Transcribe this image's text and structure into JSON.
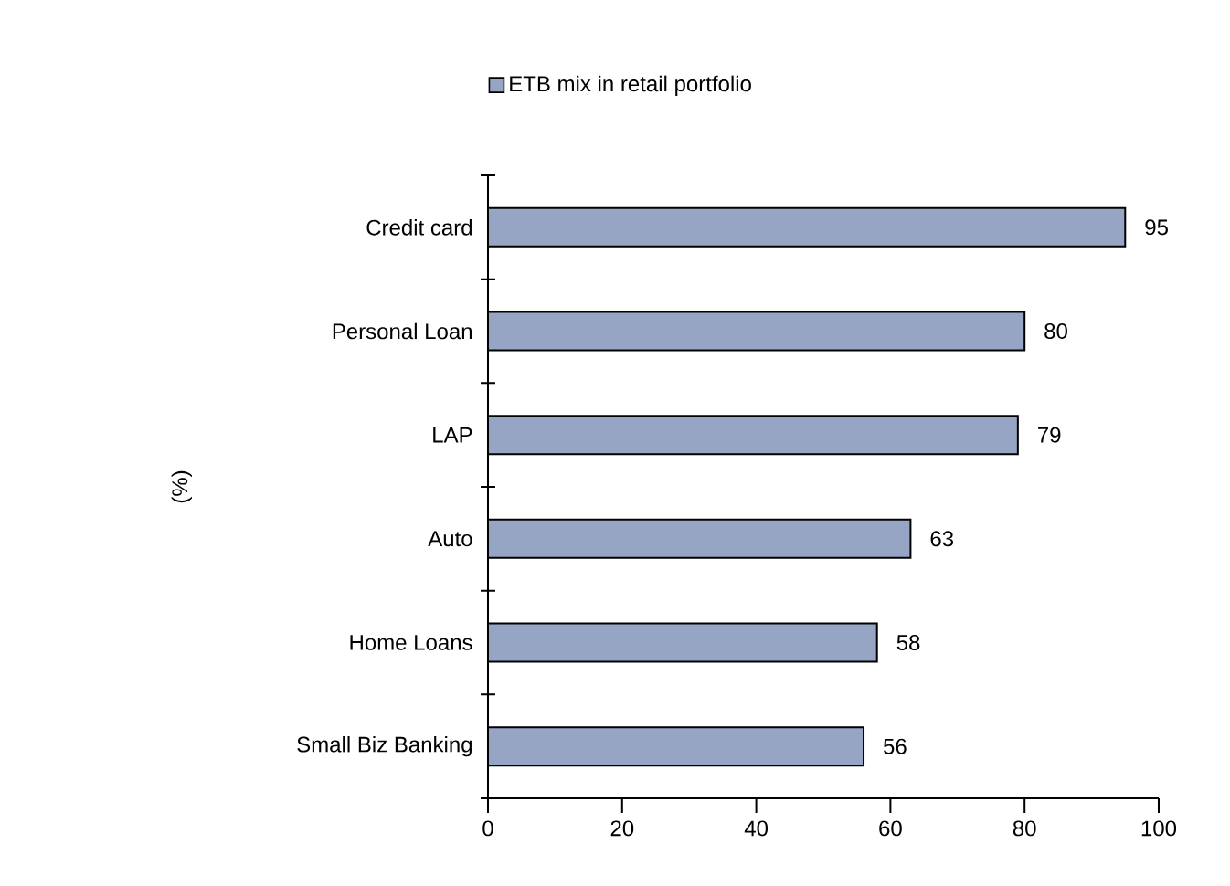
{
  "chart_data": {
    "type": "bar",
    "orientation": "horizontal",
    "ylabel": "(%)",
    "categories": [
      "Credit card",
      "Personal Loan",
      "LAP",
      "Auto",
      "Home Loans",
      "Small Biz Banking"
    ],
    "series": [
      {
        "name": "ETB mix in retail portfolio",
        "color": "#96a5c3",
        "values": [
          95,
          80,
          79,
          63,
          58,
          56
        ]
      }
    ],
    "xlim": [
      0,
      100
    ],
    "xticks": [
      0,
      20,
      40,
      60,
      80,
      100
    ],
    "data_labels": true,
    "legend": "top",
    "grid": false
  }
}
